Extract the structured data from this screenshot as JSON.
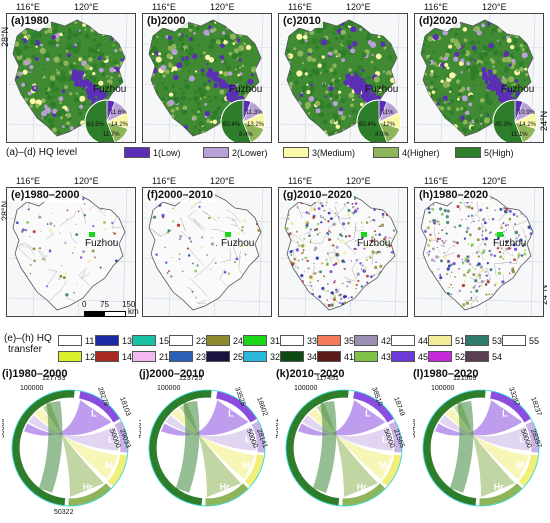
{
  "map_panels_top": [
    {
      "label": "(a)1980"
    },
    {
      "label": "(b)2000"
    },
    {
      "label": "(c)2010"
    },
    {
      "label": "(d)2020"
    }
  ],
  "map_panels_mid": [
    {
      "label": "(e)1980–2000"
    },
    {
      "label": "(f)2000–2010"
    },
    {
      "label": "(g)2010–2020"
    },
    {
      "label": "(h)1980–2020"
    }
  ],
  "lon_ticks": [
    "116°E",
    "120°E"
  ],
  "lat_ticks_top": [
    "28°N",
    "24°N"
  ],
  "lat_ticks_mid": [
    "28°N",
    "24°N"
  ],
  "city": "Fuzhou",
  "pies": [
    {
      "texts": [
        "11.6%",
        "14.2%",
        "63.5%",
        "11.7%"
      ]
    },
    {
      "texts": [
        "11.3%",
        "13.2%",
        "60.4%",
        "8.4%"
      ]
    },
    {
      "texts": [
        "11%",
        "12%",
        "60.4%",
        "4.5%"
      ]
    },
    {
      "texts": [
        "10.9%",
        "14.2%",
        "45.3%",
        "11.1%"
      ]
    }
  ],
  "hq_legend": {
    "title": "(a)–(d) HQ level",
    "items": [
      {
        "label": "1(Low)",
        "color": "#5b2fb5"
      },
      {
        "label": "2(Lower)",
        "color": "#b9a0d6"
      },
      {
        "label": "3(Medium)",
        "color": "#fbf7a8"
      },
      {
        "label": "4(Higher)",
        "color": "#8fb55a"
      },
      {
        "label": "5(High)",
        "color": "#2e7d2a"
      }
    ]
  },
  "scale": {
    "labels": [
      "0",
      "75",
      "150"
    ],
    "unit": "km"
  },
  "transfer_legend": {
    "title_line1": "(e)–(h) HQ",
    "title_line2": "transfer",
    "items": [
      {
        "label": "11",
        "color": "#ffffff"
      },
      {
        "label": "13",
        "color": "#1c2aa8"
      },
      {
        "label": "15",
        "color": "#19c2a2"
      },
      {
        "label": "22",
        "color": "#ffffff"
      },
      {
        "label": "24",
        "color": "#8f8a2d"
      },
      {
        "label": "31",
        "color": "#19d81a"
      },
      {
        "label": "33",
        "color": "#ffffff"
      },
      {
        "label": "35",
        "color": "#f47a5c"
      },
      {
        "label": "42",
        "color": "#9a8fb3"
      },
      {
        "label": "44",
        "color": "#ffffff"
      },
      {
        "label": "51",
        "color": "#f3ec9a"
      },
      {
        "label": "53",
        "color": "#2f7a6a"
      },
      {
        "label": "55",
        "color": "#ffffff"
      },
      {
        "label": "12",
        "color": "#d8f02a"
      },
      {
        "label": "14",
        "color": "#a82a22"
      },
      {
        "label": "21",
        "color": "#f2b8f0"
      },
      {
        "label": "23",
        "color": "#2b5fb8"
      },
      {
        "label": "25",
        "color": "#1a1240"
      },
      {
        "label": "32",
        "color": "#2ab8d8"
      },
      {
        "label": "34",
        "color": "#0f4a12"
      },
      {
        "label": "41",
        "color": "#5a1a1a"
      },
      {
        "label": "43",
        "color": "#7fc24a"
      },
      {
        "label": "45",
        "color": "#6b3ad8"
      },
      {
        "label": "52",
        "color": "#c52ad8"
      },
      {
        "label": "54",
        "color": "#5a3e52"
      }
    ]
  },
  "chords": [
    {
      "title": "(i)1980–2000",
      "nums": [
        "127793",
        "100000",
        "28279",
        "18103",
        "29033",
        "50000",
        "50000",
        "50322"
      ],
      "arc_labels": [
        "L",
        "Lr",
        "M",
        "Hr",
        "H"
      ]
    },
    {
      "title": "(j)2000–2010",
      "nums": [
        "123725",
        "100000",
        "33525",
        "18602",
        "28141",
        "50000",
        "49537"
      ],
      "arc_labels": [
        "L",
        "Lr",
        "M",
        "Hr",
        "H"
      ]
    },
    {
      "title": "(k)2010–2020",
      "nums": [
        "117451",
        "100000",
        "38510",
        "18749",
        "21565",
        "50000",
        "49681"
      ],
      "arc_labels": [
        "L",
        "Lr",
        "M",
        "Hr",
        "H"
      ]
    },
    {
      "title": "(l)1980–2020",
      "nums": [
        "121509",
        "100000",
        "33287",
        "18237",
        "28397",
        "50000",
        "50450"
      ],
      "arc_labels": [
        "L",
        "Lr",
        "M",
        "Hr",
        "H"
      ]
    }
  ]
}
